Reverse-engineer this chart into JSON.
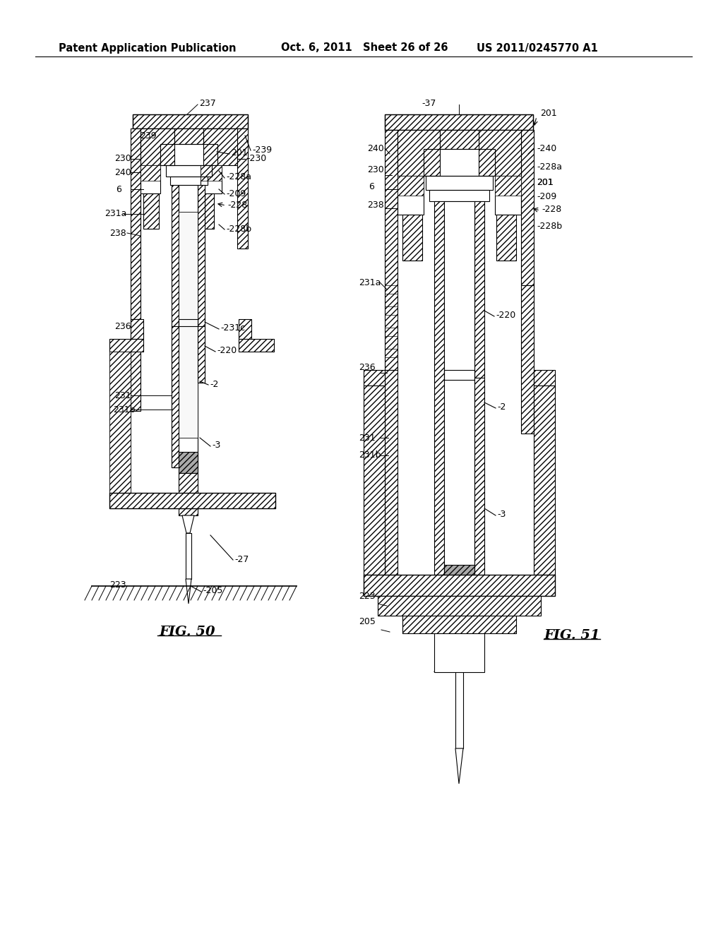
{
  "header_left": "Patent Application Publication",
  "header_center": "Oct. 6, 2011   Sheet 26 of 26",
  "header_right": "US 2011/0245770 A1",
  "fig50_label": "FIG. 50",
  "fig51_label": "FIG. 51",
  "bg_color": "#ffffff",
  "line_color": "#000000",
  "header_fontsize": 10.5,
  "fig_label_fontsize": 13,
  "label_fontsize": 9
}
